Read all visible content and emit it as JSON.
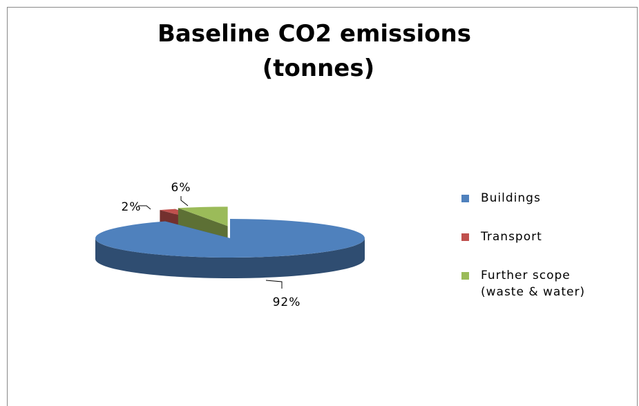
{
  "chart_data": {
    "type": "pie3d",
    "title": "Baseline CO2 emissions (tonnes)",
    "categories": [
      "Buildings",
      "Transport",
      "Further scope (waste & water)"
    ],
    "values": [
      92,
      2,
      6
    ],
    "value_labels": [
      "92%",
      "2%",
      "6%"
    ],
    "colors": [
      "#4f81bd",
      "#c0504d",
      "#9bbb59"
    ],
    "legend": "right"
  }
}
